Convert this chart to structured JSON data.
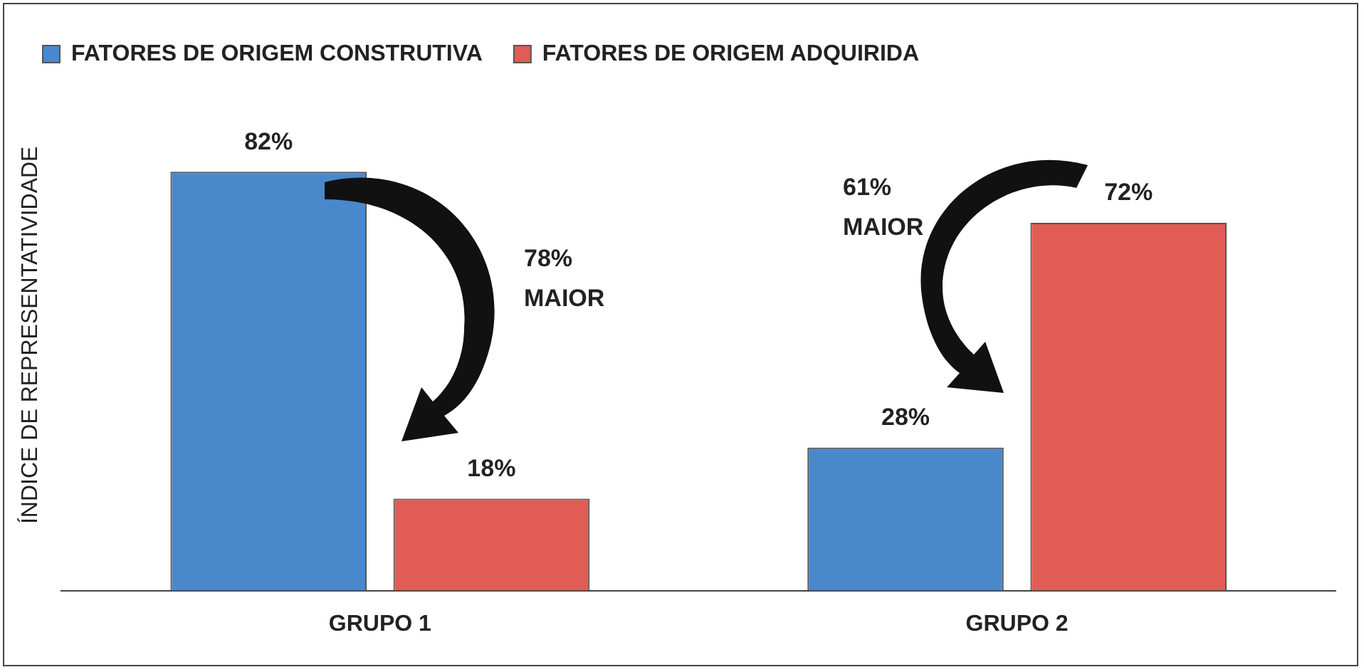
{
  "chart_data": {
    "type": "bar",
    "ylabel": "ÍNDICE DE REPRESENTATIVIDADE",
    "categories": [
      "GRUPO 1",
      "GRUPO 2"
    ],
    "series": [
      {
        "name": "FATORES DE ORIGEM CONSTRUTIVA",
        "color": "#4a88cc",
        "values": [
          82,
          28
        ],
        "value_labels": [
          "82%",
          "28%"
        ]
      },
      {
        "name": "FATORES DE ORIGEM ADQUIRIDA",
        "color": "#e05c55",
        "values": [
          18,
          72
        ],
        "value_labels": [
          "18%",
          "72%"
        ]
      }
    ],
    "legend": "top",
    "grid": false,
    "tick_labels": "x",
    "annotations": [
      "78% MAIOR",
      "61% MAIOR"
    ]
  }
}
